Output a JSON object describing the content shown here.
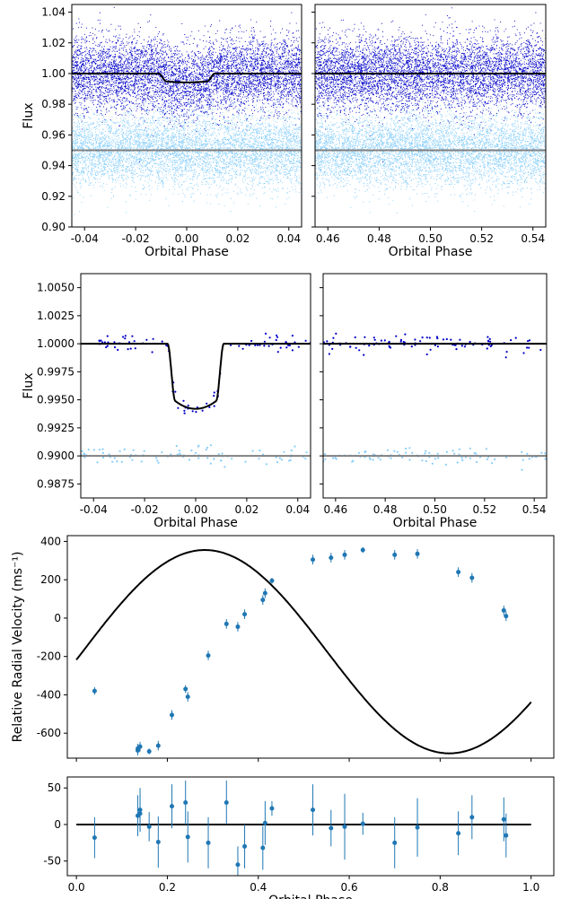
{
  "colors": {
    "dark_blue": "#0000c8",
    "light_blue": "#87cefa",
    "model_line": "#000000",
    "offset_line": "#808080",
    "rv_points": "#1f77b4"
  },
  "chart_data": [
    {
      "id": "full_phase_left",
      "type": "scatter",
      "xlabel": "Orbital Phase",
      "ylabel": "Flux",
      "xlim": [
        -0.045,
        0.045
      ],
      "ylim": [
        0.9,
        1.045
      ],
      "xticks": [
        "-0.04",
        "-0.02",
        "0.00",
        "0.02",
        "0.04"
      ],
      "xtick_values": [
        -0.04,
        -0.02,
        0.0,
        0.02,
        0.04
      ],
      "yticks": [
        "0.90",
        "0.92",
        "0.94",
        "0.96",
        "0.98",
        "1.00",
        "1.02",
        "1.04"
      ],
      "ytick_values": [
        0.9,
        0.92,
        0.94,
        0.96,
        0.98,
        1.0,
        1.02,
        1.04
      ],
      "series": [
        {
          "center": 1.0,
          "scatter_sd": 0.012,
          "color": "dark_blue"
        },
        {
          "center": 0.95,
          "scatter_sd": 0.012,
          "color": "light_blue"
        }
      ],
      "model": {
        "baseline": 1.0,
        "depth": 0.0058,
        "half_duration": 0.011,
        "ingress": 0.003
      },
      "offset_line": 0.95
    },
    {
      "id": "full_phase_right",
      "type": "scatter",
      "xlabel": "Orbital Phase",
      "xlim": [
        0.455,
        0.545
      ],
      "ylim": [
        0.9,
        1.045
      ],
      "xticks": [
        "0.46",
        "0.48",
        "0.50",
        "0.52",
        "0.54"
      ],
      "xtick_values": [
        0.46,
        0.48,
        0.5,
        0.52,
        0.54
      ],
      "series": [
        {
          "center": 1.0,
          "scatter_sd": 0.012,
          "color": "dark_blue"
        },
        {
          "center": 0.95,
          "scatter_sd": 0.012,
          "color": "light_blue"
        }
      ],
      "model": {
        "baseline": 1.0
      },
      "offset_line": 0.95
    },
    {
      "id": "binned_left",
      "type": "scatter",
      "xlabel": "Orbital Phase",
      "ylabel": "Flux",
      "xlim": [
        -0.045,
        0.045
      ],
      "ylim": [
        0.98625,
        1.00625
      ],
      "xticks": [
        "-0.04",
        "-0.02",
        "0.00",
        "0.02",
        "0.04"
      ],
      "xtick_values": [
        -0.04,
        -0.02,
        0.0,
        0.02,
        0.04
      ],
      "yticks": [
        "0.9875",
        "0.9900",
        "0.9925",
        "0.9950",
        "0.9975",
        "1.0000",
        "1.0025",
        "1.0050"
      ],
      "ytick_values": [
        0.9875,
        0.99,
        0.9925,
        0.995,
        0.9975,
        1.0,
        1.0025,
        1.005
      ],
      "series": [
        {
          "center": 1.0,
          "scatter_sd": 0.0004,
          "color": "dark_blue",
          "n": 90
        },
        {
          "center": 0.99,
          "scatter_sd": 0.0004,
          "color": "light_blue",
          "n": 90
        }
      ],
      "model": {
        "baseline": 1.0,
        "depth": 0.0058,
        "half_duration": 0.011,
        "ingress": 0.003
      },
      "offset_line": 0.99
    },
    {
      "id": "binned_right",
      "type": "scatter",
      "xlabel": "Orbital Phase",
      "xlim": [
        0.455,
        0.545
      ],
      "ylim": [
        0.98625,
        1.00625
      ],
      "xticks": [
        "0.46",
        "0.48",
        "0.50",
        "0.52",
        "0.54"
      ],
      "xtick_values": [
        0.46,
        0.48,
        0.5,
        0.52,
        0.54
      ],
      "series": [
        {
          "center": 1.0,
          "scatter_sd": 0.0004,
          "color": "dark_blue",
          "n": 90
        },
        {
          "center": 0.99,
          "scatter_sd": 0.0004,
          "color": "light_blue",
          "n": 90
        }
      ],
      "model": {
        "baseline": 1.0
      },
      "offset_line": 0.99
    },
    {
      "id": "radial_velocity",
      "type": "scatter",
      "ylabel": "Relative Radial Velocity ($ms^{-1}$)",
      "ylabel_display": "Relative Radial Velocity (ms⁻¹)",
      "xlim": [
        -0.02,
        1.05
      ],
      "ylim": [
        -730,
        430
      ],
      "yticks": [
        "-600",
        "-400",
        "-200",
        "0",
        "200",
        "400"
      ],
      "ytick_values": [
        -600,
        -400,
        -200,
        0,
        200,
        400
      ],
      "xtick_values": [
        0.0,
        0.2,
        0.4,
        0.6,
        0.8,
        1.0
      ],
      "model_curve": {
        "x_start": 0.0,
        "x_end": 1.0,
        "y_start": -175,
        "min": -705,
        "max": 355
      },
      "points": [
        {
          "x": 0.04,
          "y": -380,
          "err": 20
        },
        {
          "x": 0.135,
          "y": -690,
          "err": 25
        },
        {
          "x": 0.135,
          "y": -680,
          "err": 25
        },
        {
          "x": 0.14,
          "y": -670,
          "err": 25
        },
        {
          "x": 0.16,
          "y": -695,
          "err": 15
        },
        {
          "x": 0.18,
          "y": -665,
          "err": 25
        },
        {
          "x": 0.21,
          "y": -505,
          "err": 25
        },
        {
          "x": 0.24,
          "y": -370,
          "err": 20
        },
        {
          "x": 0.245,
          "y": -410,
          "err": 25
        },
        {
          "x": 0.29,
          "y": -195,
          "err": 25
        },
        {
          "x": 0.33,
          "y": -30,
          "err": 25
        },
        {
          "x": 0.355,
          "y": -45,
          "err": 25
        },
        {
          "x": 0.37,
          "y": 20,
          "err": 25
        },
        {
          "x": 0.41,
          "y": 95,
          "err": 25
        },
        {
          "x": 0.415,
          "y": 130,
          "err": 25
        },
        {
          "x": 0.43,
          "y": 195,
          "err": 15
        },
        {
          "x": 0.52,
          "y": 305,
          "err": 25
        },
        {
          "x": 0.56,
          "y": 315,
          "err": 25
        },
        {
          "x": 0.59,
          "y": 330,
          "err": 25
        },
        {
          "x": 0.63,
          "y": 355,
          "err": 15
        },
        {
          "x": 0.7,
          "y": 330,
          "err": 25
        },
        {
          "x": 0.75,
          "y": 335,
          "err": 25
        },
        {
          "x": 0.84,
          "y": 240,
          "err": 25
        },
        {
          "x": 0.87,
          "y": 210,
          "err": 25
        },
        {
          "x": 0.94,
          "y": 40,
          "err": 25
        },
        {
          "x": 0.945,
          "y": 10,
          "err": 25
        }
      ]
    },
    {
      "id": "residuals",
      "type": "scatter",
      "xlabel": "Orbital Phase",
      "xlim": [
        -0.02,
        1.05
      ],
      "ylim": [
        -70,
        65
      ],
      "xticks": [
        "0.0",
        "0.2",
        "0.4",
        "0.6",
        "0.8",
        "1.0"
      ],
      "xtick_values": [
        0.0,
        0.2,
        0.4,
        0.6,
        0.8,
        1.0
      ],
      "yticks": [
        "-50",
        "0",
        "50"
      ],
      "ytick_values": [
        -50,
        0,
        50
      ],
      "points": [
        {
          "x": 0.04,
          "y": -18,
          "err": 28
        },
        {
          "x": 0.135,
          "y": 12,
          "err": 28
        },
        {
          "x": 0.14,
          "y": 20,
          "err": 30
        },
        {
          "x": 0.14,
          "y": 15,
          "err": 25
        },
        {
          "x": 0.16,
          "y": -3,
          "err": 20
        },
        {
          "x": 0.18,
          "y": -24,
          "err": 35
        },
        {
          "x": 0.21,
          "y": 25,
          "err": 30
        },
        {
          "x": 0.24,
          "y": 30,
          "err": 30
        },
        {
          "x": 0.245,
          "y": -17,
          "err": 35
        },
        {
          "x": 0.29,
          "y": -25,
          "err": 35
        },
        {
          "x": 0.33,
          "y": 30,
          "err": 30
        },
        {
          "x": 0.355,
          "y": -55,
          "err": 25
        },
        {
          "x": 0.37,
          "y": -30,
          "err": 30
        },
        {
          "x": 0.41,
          "y": -32,
          "err": 30
        },
        {
          "x": 0.415,
          "y": 2,
          "err": 30
        },
        {
          "x": 0.43,
          "y": 22,
          "err": 10
        },
        {
          "x": 0.52,
          "y": 20,
          "err": 35
        },
        {
          "x": 0.56,
          "y": -5,
          "err": 25
        },
        {
          "x": 0.59,
          "y": -3,
          "err": 45
        },
        {
          "x": 0.63,
          "y": 1,
          "err": 15
        },
        {
          "x": 0.7,
          "y": -25,
          "err": 35
        },
        {
          "x": 0.75,
          "y": -4,
          "err": 40
        },
        {
          "x": 0.84,
          "y": -12,
          "err": 30
        },
        {
          "x": 0.87,
          "y": 10,
          "err": 30
        },
        {
          "x": 0.94,
          "y": 7,
          "err": 30
        },
        {
          "x": 0.945,
          "y": -15,
          "err": 30
        }
      ],
      "zero_line": 0
    }
  ]
}
